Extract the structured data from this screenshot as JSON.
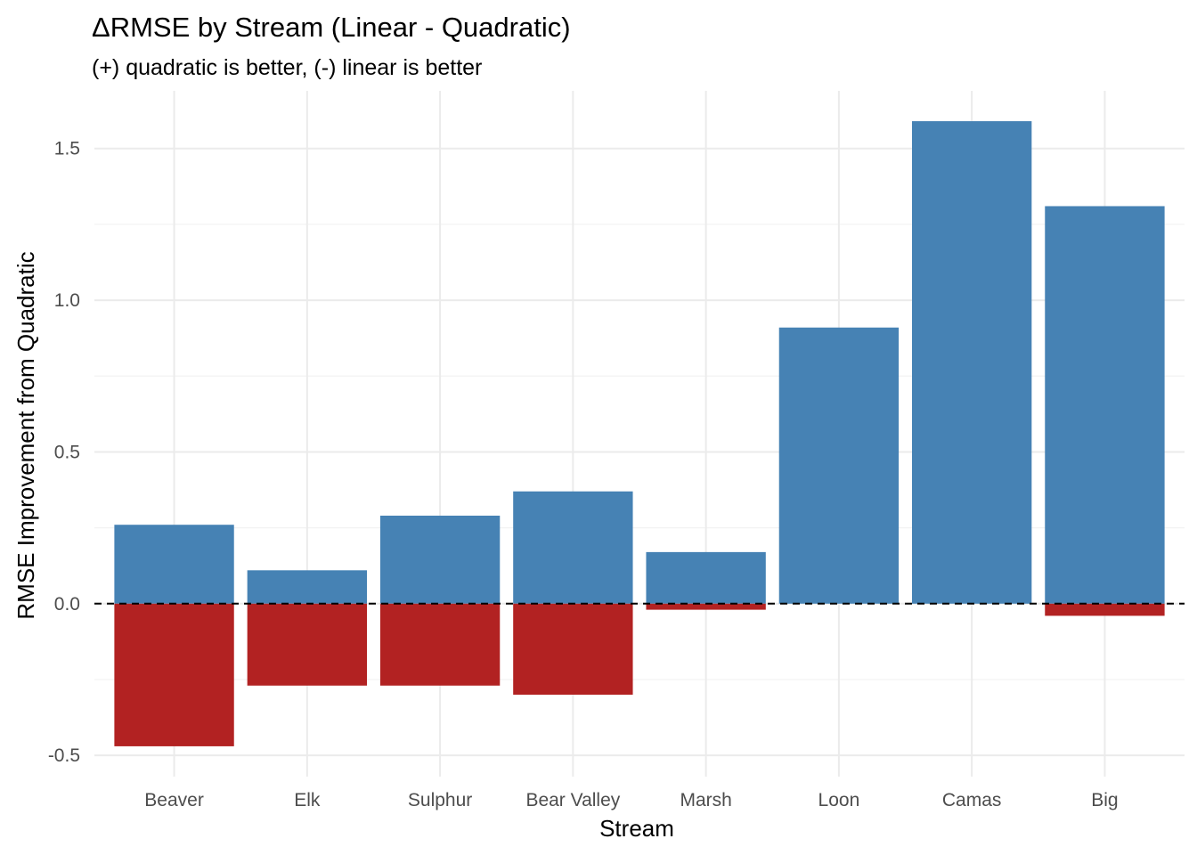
{
  "chart_data": {
    "type": "bar",
    "title": "ΔRMSE by Stream (Linear - Quadratic)",
    "subtitle": "(+) quadratic is better, (-) linear is better",
    "xlabel": "Stream",
    "ylabel": "RMSE Improvement from Quadratic",
    "categories": [
      "Beaver",
      "Elk",
      "Sulphur",
      "Bear Valley",
      "Marsh",
      "Loon",
      "Camas",
      "Big"
    ],
    "series": [
      {
        "values": [
          0.26,
          0.11,
          0.29,
          0.37,
          0.17,
          0.91,
          1.59,
          1.31
        ],
        "color": "#4682B4"
      },
      {
        "values": [
          -0.47,
          -0.27,
          -0.27,
          -0.3,
          -0.02,
          0.0,
          0.0,
          -0.04
        ],
        "color": "#B22222"
      }
    ],
    "ylim": [
      -0.57,
      1.69
    ],
    "yticks": [
      -0.5,
      0.0,
      0.5,
      1.0,
      1.5
    ],
    "ytick_labels": [
      "-0.5",
      "0.0",
      "0.5",
      "1.0",
      "1.5"
    ],
    "reference_line": 0,
    "grid": true,
    "legend": "none"
  }
}
